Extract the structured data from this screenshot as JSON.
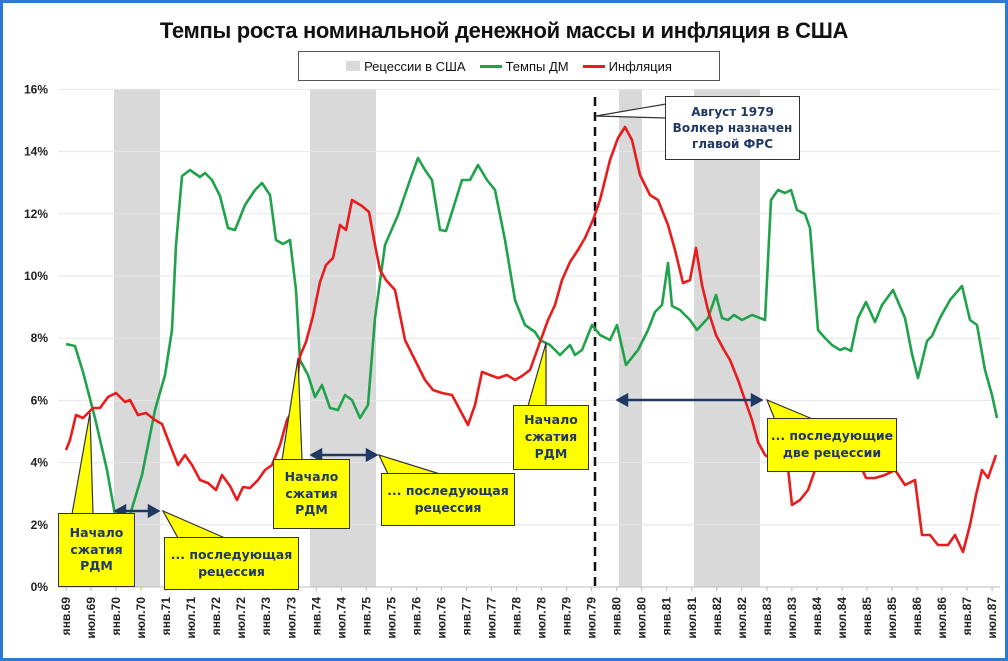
{
  "title": "Темпы роста номинальной денежной массы и инфляция в США",
  "legend": {
    "recession": "Рецессии в США",
    "money": "Темпы ДМ",
    "inflation": "Инфляция"
  },
  "colors": {
    "money": "#1fa24a",
    "inflation": "#e81c1c",
    "recession": "#d9d9d9",
    "callout": "#ffff00",
    "callout_text": "#1f3864",
    "arrow": "#1f3864",
    "frame": "#2a7bd1"
  },
  "annotations": {
    "volcker": "Август 1979\nВолкер назначен\nглавой ФРС",
    "start1": "Начало\nсжатия\nРДМ",
    "rec1": "... последующая\nрецессия",
    "start2": "Начало\nсжатия\nРДМ",
    "rec2": "... последующая\nрецессия",
    "start3": "Начало\nсжатия\nРДМ",
    "rec3": "... последующие\nдве рецессии"
  },
  "chart_data": {
    "type": "line",
    "title": "Темпы роста номинальной денежной массы и инфляция в США",
    "xlabel": "",
    "ylabel": "",
    "ylim": [
      0,
      16
    ],
    "yticks": [
      "0%",
      "2%",
      "4%",
      "6%",
      "8%",
      "10%",
      "12%",
      "14%",
      "16%"
    ],
    "x_tick_labels": [
      "янв.69",
      "июл.69",
      "янв.70",
      "июл.70",
      "янв.71",
      "июл.71",
      "янв.72",
      "июл.72",
      "янв.73",
      "июл.73",
      "янв.74",
      "июл.74",
      "янв.75",
      "июл.75",
      "янв.76",
      "июл.76",
      "янв.77",
      "июл.77",
      "янв.78",
      "июл.78",
      "янв.79",
      "июл.79",
      "янв.80",
      "июл.80",
      "янв.81",
      "июл.81",
      "янв.82",
      "июл.82",
      "янв.83",
      "июл.83",
      "янв.84",
      "июл.84",
      "янв.85",
      "июл.85",
      "янв.86",
      "июл.86",
      "янв.87",
      "июл.87"
    ],
    "grid": true,
    "legend_position": "top",
    "recessions": [
      {
        "start": "дек.69",
        "end": "ноя.70"
      },
      {
        "start": "ноя.73",
        "end": "мар.75"
      },
      {
        "start": "янв.80",
        "end": "июл.80"
      },
      {
        "start": "июл.81",
        "end": "ноя.82"
      }
    ],
    "vertical_marker": {
      "date": "авг.79",
      "label": "Август 1979 Волкер назначен главой ФРС"
    },
    "series": [
      {
        "name": "Темпы ДМ",
        "x": [
          "янв.69",
          "июл.69",
          "янв.70",
          "июл.70",
          "янв.71",
          "июл.71",
          "янв.72",
          "июл.72",
          "янв.73",
          "июл.73",
          "янв.74",
          "июл.74",
          "янв.75",
          "июл.75",
          "янв.76",
          "июл.76",
          "янв.77",
          "июл.77",
          "янв.78",
          "июл.78",
          "янв.79",
          "июл.79",
          "янв.80",
          "июл.80",
          "янв.81",
          "июл.81",
          "янв.82",
          "июл.82",
          "янв.83",
          "июл.83",
          "янв.84",
          "июл.84",
          "янв.85",
          "июл.85",
          "янв.86",
          "июл.86",
          "янв.87",
          "июл.87"
        ],
        "values": [
          7.8,
          6.3,
          3.3,
          4.0,
          7.5,
          13.3,
          13.2,
          11.6,
          12.8,
          11.0,
          6.8,
          5.5,
          5.6,
          11.0,
          12.6,
          13.6,
          13.2,
          13.0,
          10.0,
          8.0,
          7.4,
          8.4,
          8.0,
          7.1,
          8.3,
          10.3,
          8.8,
          9.0,
          8.8,
          12.6,
          12.0,
          7.9,
          7.7,
          9.1,
          8.6,
          7.0,
          8.8,
          5.3
        ]
      },
      {
        "name": "Инфляция",
        "x": [
          "янв.69",
          "июл.69",
          "янв.70",
          "июл.70",
          "янв.71",
          "июл.71",
          "янв.72",
          "июл.72",
          "янв.73",
          "июл.73",
          "янв.74",
          "июл.74",
          "янв.75",
          "июл.75",
          "янв.76",
          "июл.76",
          "янв.77",
          "июл.77",
          "янв.78",
          "июл.78",
          "янв.79",
          "июл.79",
          "янв.80",
          "июл.80",
          "янв.81",
          "июл.81",
          "янв.82",
          "июл.82",
          "янв.83",
          "июл.83",
          "янв.84",
          "июл.84",
          "янв.85",
          "июл.85",
          "янв.86",
          "июл.86",
          "янв.87",
          "июл.87"
        ],
        "values": [
          4.4,
          5.7,
          6.1,
          5.8,
          5.3,
          4.3,
          3.4,
          2.9,
          3.7,
          6.0,
          9.4,
          11.1,
          11.8,
          9.7,
          6.8,
          5.5,
          5.3,
          6.7,
          6.6,
          8.0,
          9.7,
          11.6,
          14.3,
          12.8,
          11.8,
          10.7,
          8.4,
          6.4,
          3.8,
          2.5,
          4.2,
          4.2,
          3.6,
          3.5,
          3.9,
          1.7,
          1.3,
          4.3
        ]
      }
    ]
  }
}
